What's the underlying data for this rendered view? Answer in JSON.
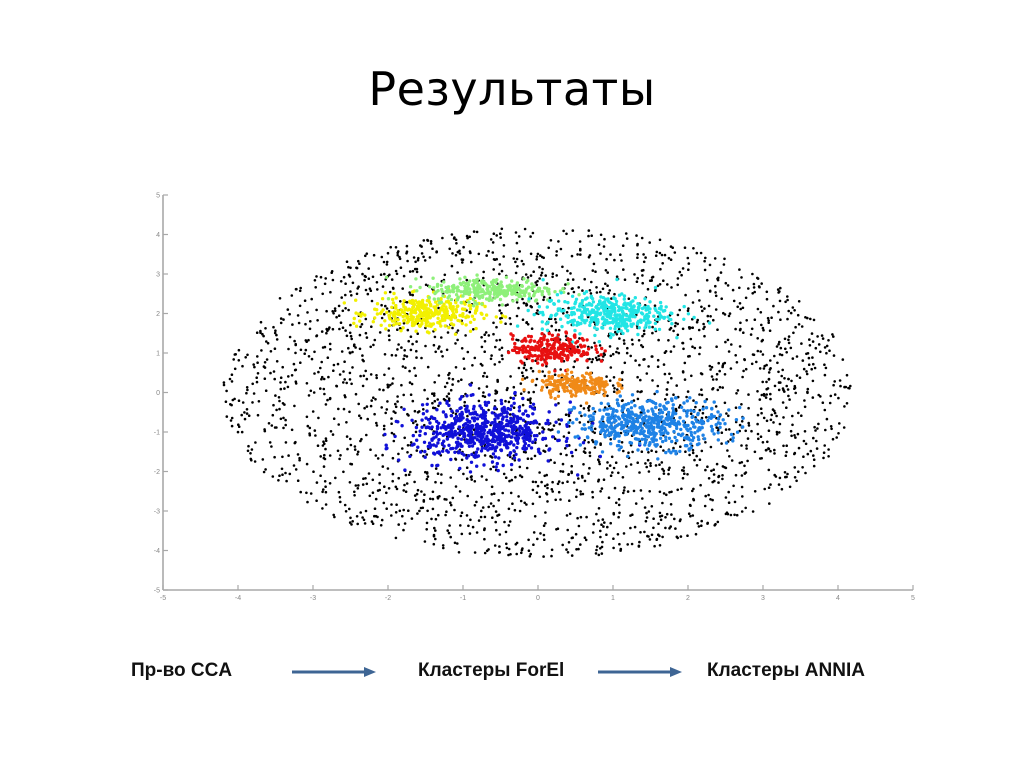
{
  "slide": {
    "title": "Результаты"
  },
  "flow": {
    "steps": [
      "Пр-во CCA",
      "Кластеры ForEl",
      "Кластеры ANNIA"
    ],
    "arrow_color": "#3e6594"
  },
  "chart_data": {
    "type": "scatter",
    "title": "",
    "xlabel": "",
    "ylabel": "",
    "xlim": [
      -5,
      5
    ],
    "ylim": [
      -5,
      5
    ],
    "xticks": [
      -5,
      -4,
      -3,
      -2,
      -1,
      0,
      1,
      2,
      3,
      4,
      5
    ],
    "yticks": [
      -5,
      -4,
      -3,
      -2,
      -1,
      0,
      1,
      2,
      3,
      4,
      5
    ],
    "grid": false,
    "legend": null,
    "series": [
      {
        "name": "background (unclustered)",
        "color": "#000000",
        "shape": "ellipse",
        "center": [
          0.0,
          0.0
        ],
        "spread": [
          4.2,
          4.2
        ],
        "approx_points": 2500
      },
      {
        "name": "yellow cluster",
        "color": "#f2f000",
        "center": [
          -1.5,
          2.0
        ],
        "spread": [
          0.6,
          0.35
        ],
        "approx_points": 350
      },
      {
        "name": "light-green cluster",
        "color": "#8ef07a",
        "center": [
          -0.6,
          2.6
        ],
        "spread": [
          0.7,
          0.25
        ],
        "approx_points": 300
      },
      {
        "name": "cyan cluster",
        "color": "#22e5e5",
        "center": [
          0.9,
          2.0
        ],
        "spread": [
          0.7,
          0.4
        ],
        "approx_points": 400
      },
      {
        "name": "red cluster",
        "color": "#e81010",
        "center": [
          0.2,
          1.1
        ],
        "spread": [
          0.45,
          0.3
        ],
        "approx_points": 250
      },
      {
        "name": "orange cluster",
        "color": "#f08a18",
        "center": [
          0.5,
          0.2
        ],
        "spread": [
          0.4,
          0.25
        ],
        "approx_points": 200
      },
      {
        "name": "blue cluster",
        "color": "#1010d8",
        "center": [
          -0.7,
          -1.0
        ],
        "spread": [
          0.8,
          0.6
        ],
        "approx_points": 650
      },
      {
        "name": "light-blue cluster",
        "color": "#1e82e6",
        "center": [
          1.5,
          -0.8
        ],
        "spread": [
          0.8,
          0.5
        ],
        "approx_points": 500
      }
    ]
  }
}
